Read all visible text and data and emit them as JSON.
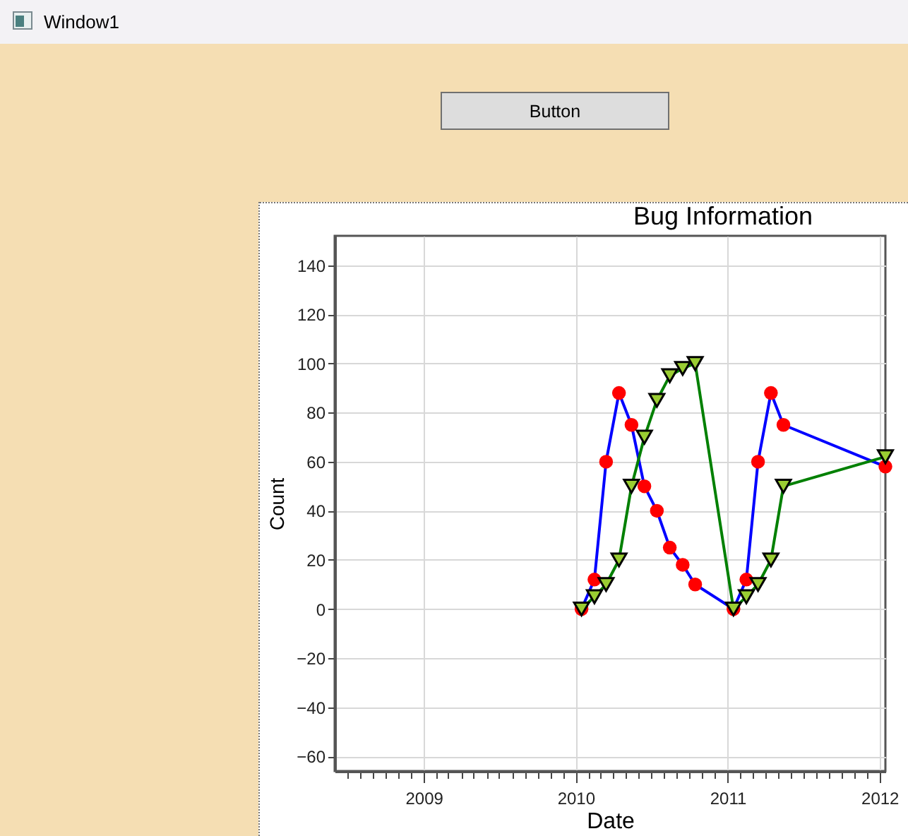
{
  "chart_data": {
    "type": "line",
    "title": "Bug Information",
    "xlabel": "Date",
    "ylabel": "Count",
    "annotations": [
      "Window1",
      "Button"
    ],
    "x": [
      "2010-01-15",
      "2010-02-15",
      "2010-03-15",
      "2010-04-15",
      "2010-05-15",
      "2010-06-15",
      "2010-07-15",
      "2010-08-15",
      "2010-09-15",
      "2010-10-15",
      "2011-01-15",
      "2011-02-15",
      "2011-03-15",
      "2011-04-15",
      "2011-05-15",
      "2012-01-15"
    ],
    "series": [
      {
        "color": "#0000ff",
        "marker": "circle",
        "values": [
          0,
          12,
          60,
          88,
          75,
          50,
          40,
          25,
          18,
          10,
          0,
          12,
          60,
          88,
          75,
          58
        ]
      },
      {
        "color": "#008000",
        "marker": "triangle",
        "values": [
          0,
          5,
          10,
          20,
          50,
          70,
          85,
          95,
          98,
          100,
          0,
          5,
          10,
          20,
          50,
          62
        ]
      }
    ],
    "xlim": [
      "2008-06-01",
      "2012-01-15"
    ],
    "xticks": [
      {
        "value": "2008-07-01",
        "label": null
      },
      {
        "value": "2008-08-01",
        "label": null
      },
      {
        "value": "2008-09-01",
        "label": null
      },
      {
        "value": "2008-10-01",
        "label": null
      },
      {
        "value": "2008-11-01",
        "label": null
      },
      {
        "value": "2008-12-01",
        "label": null
      },
      {
        "value": "2009-01-01",
        "label": "2009"
      },
      {
        "value": "2009-02-01",
        "label": null
      },
      {
        "value": "2009-03-01",
        "label": null
      },
      {
        "value": "2009-04-01",
        "label": null
      },
      {
        "value": "2009-05-01",
        "label": null
      },
      {
        "value": "2009-06-01",
        "label": null
      },
      {
        "value": "2009-07-01",
        "label": null
      },
      {
        "value": "2009-08-01",
        "label": null
      },
      {
        "value": "2009-09-01",
        "label": null
      },
      {
        "value": "2009-10-01",
        "label": null
      },
      {
        "value": "2009-11-01",
        "label": null
      },
      {
        "value": "2009-12-01",
        "label": null
      },
      {
        "value": "2010-01-01",
        "label": "2010"
      },
      {
        "value": "2010-02-01",
        "label": null
      },
      {
        "value": "2010-03-01",
        "label": null
      },
      {
        "value": "2010-04-01",
        "label": null
      },
      {
        "value": "2010-05-01",
        "label": null
      },
      {
        "value": "2010-06-01",
        "label": null
      },
      {
        "value": "2010-07-01",
        "label": null
      },
      {
        "value": "2010-08-01",
        "label": null
      },
      {
        "value": "2010-09-01",
        "label": null
      },
      {
        "value": "2010-10-01",
        "label": null
      },
      {
        "value": "2010-11-01",
        "label": null
      },
      {
        "value": "2010-12-01",
        "label": null
      },
      {
        "value": "2011-01-01",
        "label": "2011"
      },
      {
        "value": "2011-02-01",
        "label": null
      },
      {
        "value": "2011-03-01",
        "label": null
      },
      {
        "value": "2011-04-01",
        "label": null
      },
      {
        "value": "2011-05-01",
        "label": null
      },
      {
        "value": "2011-06-01",
        "label": null
      },
      {
        "value": "2011-07-01",
        "label": null
      },
      {
        "value": "2011-08-01",
        "label": null
      },
      {
        "value": "2011-09-01",
        "label": null
      },
      {
        "value": "2011-10-01",
        "label": null
      },
      {
        "value": "2011-11-01",
        "label": null
      },
      {
        "value": "2011-12-01",
        "label": null
      },
      {
        "value": "2012-01-01",
        "label": "2012"
      }
    ],
    "ylim": [
      -66,
      152
    ],
    "yticks": [
      -60,
      -40,
      -20,
      0,
      20,
      40,
      60,
      80,
      100,
      120,
      140
    ],
    "grid": true
  }
}
